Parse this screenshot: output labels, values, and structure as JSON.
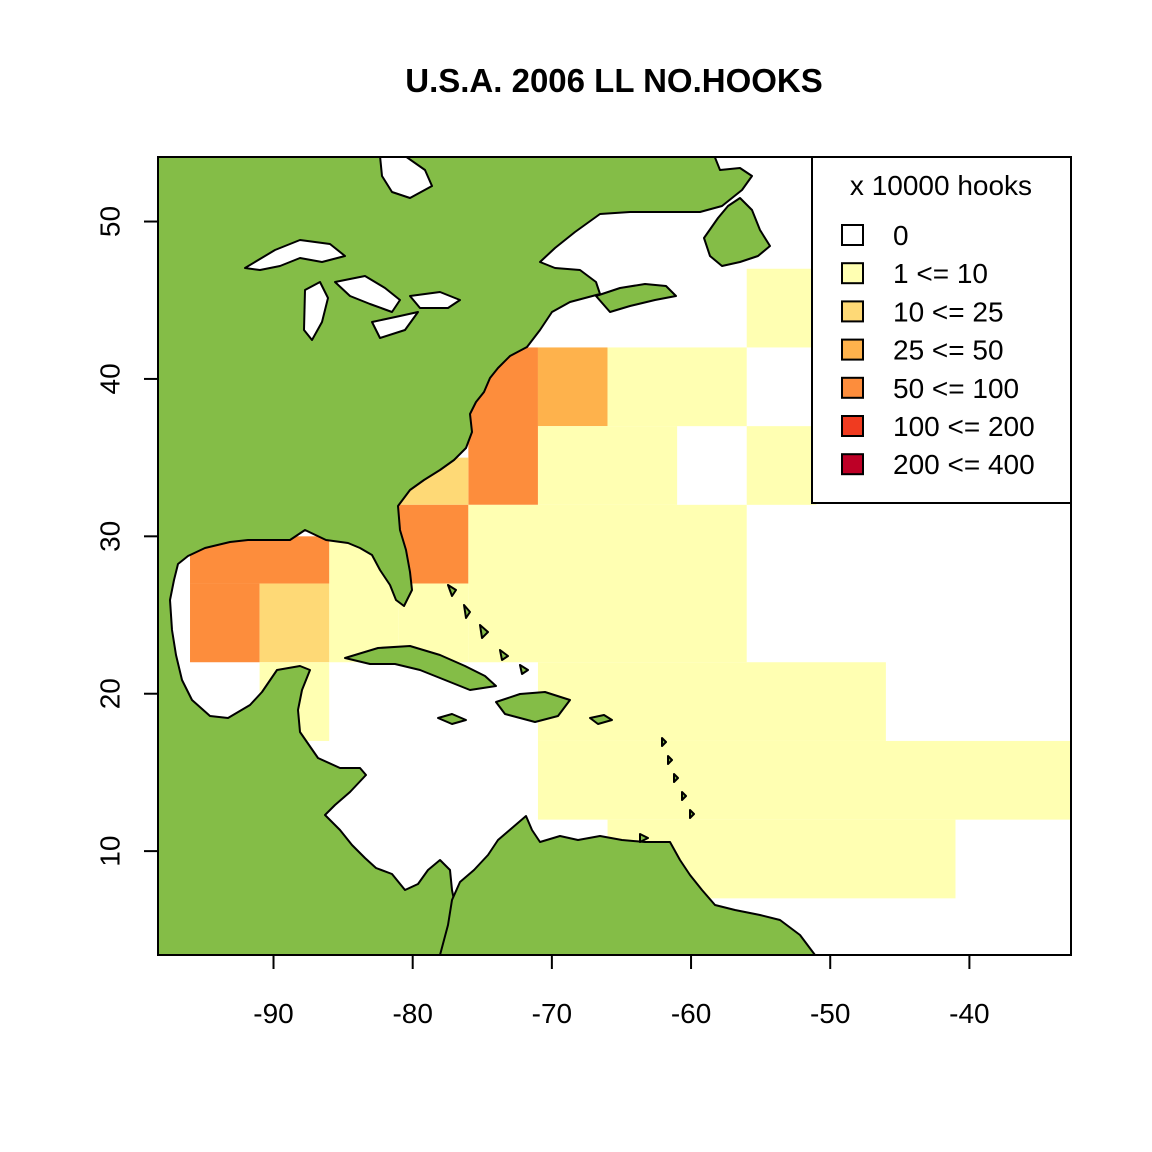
{
  "chart_data": {
    "type": "heatmap",
    "title": "U.S.A. 2006 LL NO.HOOKS",
    "xlabel": "",
    "ylabel": "",
    "xlim": [
      -98.3,
      -32.7
    ],
    "ylim": [
      3.4,
      54.1
    ],
    "x_ticks": [
      -90,
      -80,
      -70,
      -60,
      -50,
      -40
    ],
    "y_ticks": [
      10,
      20,
      30,
      40,
      50
    ],
    "x_tick_labels": [
      "-90",
      "-80",
      "-70",
      "-60",
      "-50",
      "-40"
    ],
    "y_tick_labels": [
      "10",
      "20",
      "30",
      "40",
      "50"
    ],
    "grid": false,
    "land_color": "#84bd47",
    "legend": {
      "title": "x 10000 hooks",
      "position": "top-right",
      "entries": [
        {
          "label": "0",
          "color": "#ffffff"
        },
        {
          "label": "1 <= 10",
          "color": "#ffffb2"
        },
        {
          "label": "10 <= 25",
          "color": "#fed976"
        },
        {
          "label": "25 <= 50",
          "color": "#feb24c"
        },
        {
          "label": "50 <= 100",
          "color": "#fd8d3c"
        },
        {
          "label": "100 <= 200",
          "color": "#f03b20"
        },
        {
          "label": "200 <= 400",
          "color": "#bd0026"
        }
      ]
    },
    "cells": [
      {
        "lon": [
          -56,
          -51
        ],
        "lat": [
          42,
          47
        ],
        "level": 1
      },
      {
        "lon": [
          -76,
          -71
        ],
        "lat": [
          32,
          42
        ],
        "level": 4
      },
      {
        "lon": [
          -71,
          -66
        ],
        "lat": [
          37,
          42
        ],
        "level": 3
      },
      {
        "lon": [
          -66,
          -56
        ],
        "lat": [
          37,
          42
        ],
        "level": 1
      },
      {
        "lon": [
          -71,
          -61
        ],
        "lat": [
          32,
          37
        ],
        "level": 1
      },
      {
        "lon": [
          -56,
          -51
        ],
        "lat": [
          32,
          37
        ],
        "level": 1
      },
      {
        "lon": [
          -81,
          -76
        ],
        "lat": [
          32,
          35
        ],
        "level": 2
      },
      {
        "lon": [
          -81,
          -76
        ],
        "lat": [
          27,
          32
        ],
        "level": 4
      },
      {
        "lon": [
          -76,
          -56
        ],
        "lat": [
          22,
          32
        ],
        "level": 1
      },
      {
        "lon": [
          -81,
          -76
        ],
        "lat": [
          22,
          27
        ],
        "level": 1
      },
      {
        "lon": [
          -86,
          -81
        ],
        "lat": [
          22,
          30
        ],
        "level": 1
      },
      {
        "lon": [
          -96,
          -86
        ],
        "lat": [
          27,
          30
        ],
        "level": 4
      },
      {
        "lon": [
          -96,
          -91
        ],
        "lat": [
          22,
          27
        ],
        "level": 4
      },
      {
        "lon": [
          -91,
          -86
        ],
        "lat": [
          22,
          27
        ],
        "level": 2
      },
      {
        "lon": [
          -91,
          -86
        ],
        "lat": [
          17,
          22
        ],
        "level": 1
      },
      {
        "lon": [
          -71,
          -46
        ],
        "lat": [
          17,
          22
        ],
        "level": 1
      },
      {
        "lon": [
          -71,
          -31
        ],
        "lat": [
          12,
          17
        ],
        "level": 1
      },
      {
        "lon": [
          -66,
          -41
        ],
        "lat": [
          7,
          12
        ],
        "level": 1
      }
    ]
  }
}
